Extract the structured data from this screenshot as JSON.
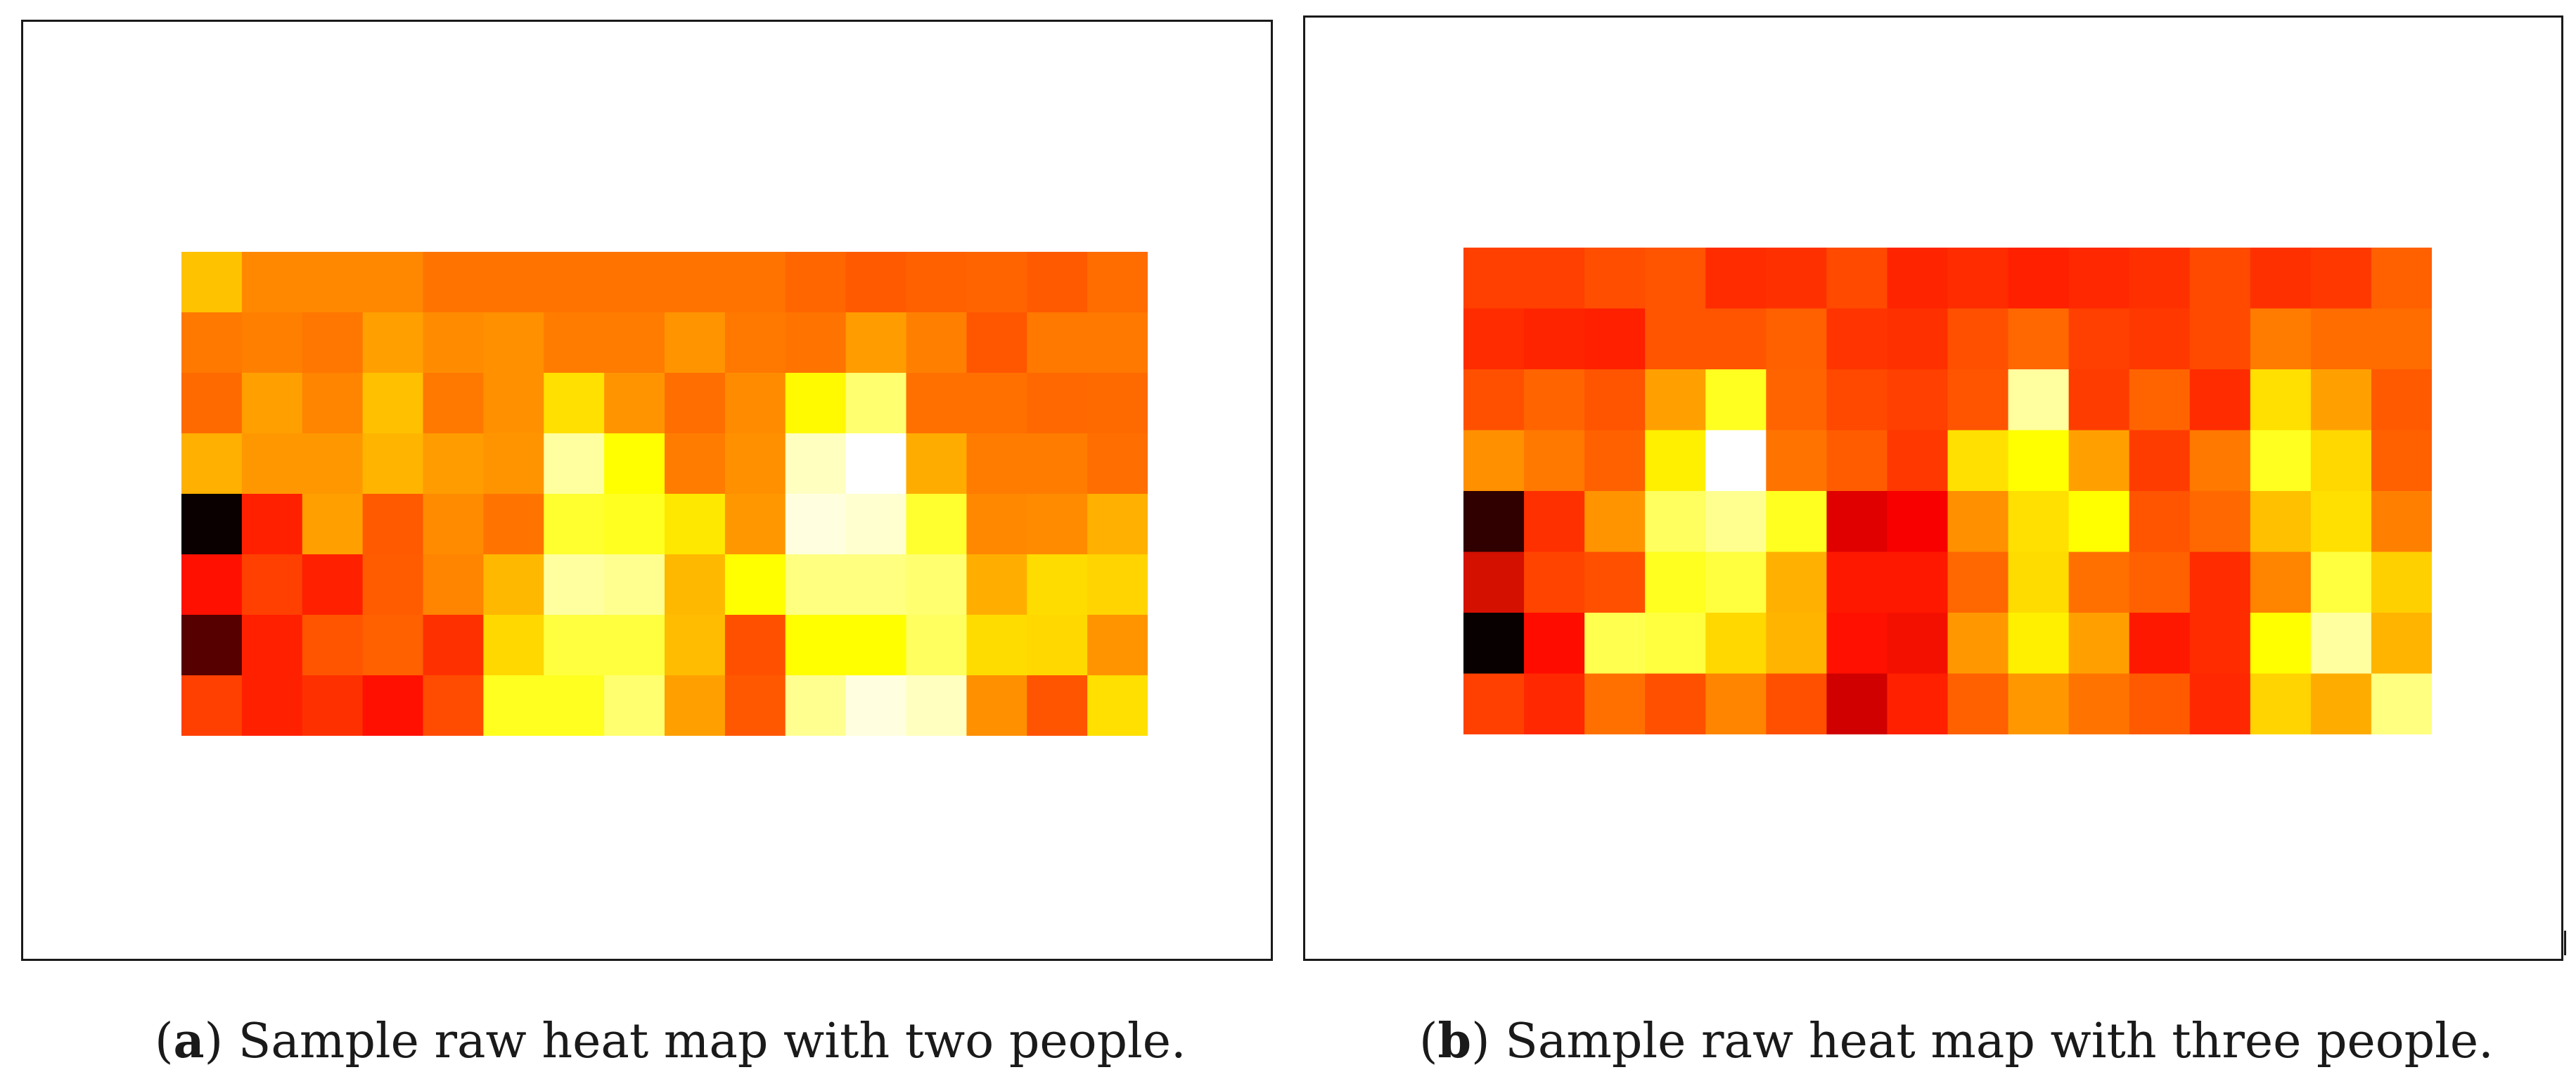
{
  "figure": {
    "subfigures": [
      {
        "letter": "a",
        "caption": "Sample raw heat map with two people."
      },
      {
        "letter": "b",
        "caption": "Sample raw heat map with three people."
      }
    ]
  },
  "chart_data": [
    {
      "type": "heatmap",
      "title": "",
      "xlabel": "",
      "ylabel": "",
      "rows": 8,
      "cols": 16,
      "colormap": "hot",
      "axes_visible": false,
      "colorbar": false,
      "colors": [
        [
          "#ffc200",
          "#ff8800",
          "#ff8800",
          "#ff8800",
          "#ff7400",
          "#ff7400",
          "#ff7400",
          "#ff7400",
          "#ff7400",
          "#ff7400",
          "#ff6600",
          "#ff5a00",
          "#ff6000",
          "#ff6400",
          "#ff5a00",
          "#ff6c00"
        ],
        [
          "#ff7800",
          "#ff8000",
          "#ff7600",
          "#ffa000",
          "#ff8c00",
          "#ff9000",
          "#ff7c00",
          "#ff7c00",
          "#ff9400",
          "#ff7800",
          "#ff7400",
          "#ff9c00",
          "#ff8000",
          "#ff5600",
          "#ff7800",
          "#ff7800"
        ],
        [
          "#ff6a00",
          "#ffa000",
          "#ff8400",
          "#ffc000",
          "#ff7800",
          "#ff9000",
          "#ffe000",
          "#ff9400",
          "#ff6e00",
          "#ff8c00",
          "#fffa00",
          "#ffff70",
          "#ff7000",
          "#ff7000",
          "#ff6800",
          "#ff6a00"
        ],
        [
          "#ffb000",
          "#ff9800",
          "#ff9800",
          "#ffb400",
          "#ff9c00",
          "#ff9400",
          "#ffffa0",
          "#ffff00",
          "#ff7c00",
          "#ff9000",
          "#ffffc0",
          "#ffffff",
          "#ffac00",
          "#ff7c00",
          "#ff7c00",
          "#ff6e00"
        ],
        [
          "#0a0000",
          "#ff2000",
          "#ffa000",
          "#ff5a00",
          "#ff8c00",
          "#ff7400",
          "#ffff30",
          "#ffff20",
          "#ffe800",
          "#ff9800",
          "#ffffe0",
          "#ffffd0",
          "#ffff30",
          "#ff8800",
          "#ff8c00",
          "#ffb000"
        ],
        [
          "#ff1000",
          "#ff4000",
          "#ff2000",
          "#ff5c00",
          "#ff8400",
          "#ffb800",
          "#ffffa0",
          "#ffff90",
          "#ffb800",
          "#ffff00",
          "#ffff80",
          "#ffff80",
          "#ffff70",
          "#ffae00",
          "#ffdc00",
          "#ffd400"
        ],
        [
          "#560000",
          "#ff2000",
          "#ff5400",
          "#ff6000",
          "#ff3000",
          "#ffd800",
          "#ffff40",
          "#ffff40",
          "#ffbc00",
          "#ff5000",
          "#ffff00",
          "#ffff00",
          "#ffff60",
          "#ffdc00",
          "#ffd800",
          "#ff9400"
        ],
        [
          "#ff4000",
          "#ff2000",
          "#ff3000",
          "#ff1000",
          "#ff4c00",
          "#ffff20",
          "#ffff20",
          "#ffff70",
          "#ffa000",
          "#ff5800",
          "#ffff90",
          "#ffffe0",
          "#ffffc0",
          "#ff9000",
          "#ff5400",
          "#ffe000"
        ]
      ]
    },
    {
      "type": "heatmap",
      "title": "",
      "xlabel": "",
      "ylabel": "",
      "rows": 8,
      "cols": 16,
      "colormap": "hot",
      "axes_visible": false,
      "colorbar": false,
      "colors": [
        [
          "#ff4000",
          "#ff4000",
          "#ff4e00",
          "#ff5400",
          "#ff2c00",
          "#ff3000",
          "#ff4a00",
          "#ff2400",
          "#ff2c00",
          "#ff2000",
          "#ff2800",
          "#ff3000",
          "#ff4a00",
          "#ff3000",
          "#ff3800",
          "#ff6000"
        ],
        [
          "#ff2c00",
          "#ff2400",
          "#ff2000",
          "#ff5400",
          "#ff5400",
          "#ff6000",
          "#ff3400",
          "#ff3000",
          "#ff5000",
          "#ff6800",
          "#ff4000",
          "#ff3800",
          "#ff4a00",
          "#ff7c00",
          "#ff6c00",
          "#ff6c00"
        ],
        [
          "#ff5000",
          "#ff6400",
          "#ff5400",
          "#ffa000",
          "#ffff20",
          "#ff6400",
          "#ff4800",
          "#ff4000",
          "#ff5400",
          "#ffffa0",
          "#ff3c00",
          "#ff6400",
          "#ff2c00",
          "#ffe000",
          "#ffa000",
          "#ff5a00"
        ],
        [
          "#ff9000",
          "#ff7800",
          "#ff6000",
          "#fff000",
          "#ffffff",
          "#ff7400",
          "#ff5c00",
          "#ff3800",
          "#ffe000",
          "#ffff00",
          "#ffa000",
          "#ff3c00",
          "#ff7800",
          "#ffff20",
          "#ffd800",
          "#ff6000"
        ],
        [
          "#300000",
          "#ff3000",
          "#ff9400",
          "#ffff60",
          "#ffff90",
          "#ffff20",
          "#e00000",
          "#f80000",
          "#ff9000",
          "#ffe000",
          "#ffff00",
          "#ff5400",
          "#ff6800",
          "#ffc000",
          "#ffe000",
          "#ff8000"
        ],
        [
          "#d41000",
          "#ff4400",
          "#ff5000",
          "#ffff20",
          "#ffff40",
          "#ffb000",
          "#ff1800",
          "#ff1800",
          "#ff6800",
          "#ffdc00",
          "#ff7000",
          "#ff6000",
          "#ff2c00",
          "#ff8400",
          "#ffff40",
          "#ffd000"
        ],
        [
          "#080000",
          "#ff0c00",
          "#ffff50",
          "#ffff40",
          "#ffd800",
          "#ffb400",
          "#ff1000",
          "#f41000",
          "#ff9800",
          "#fff000",
          "#ffa000",
          "#ff1800",
          "#ff2c00",
          "#ffff00",
          "#ffffa0",
          "#ffb400"
        ],
        [
          "#ff4000",
          "#ff2800",
          "#ff7000",
          "#ff5000",
          "#ff8400",
          "#ff5000",
          "#d00000",
          "#ff2000",
          "#ff6000",
          "#ff9800",
          "#ff7400",
          "#ff5a00",
          "#ff2800",
          "#ffd400",
          "#ffac00",
          "#ffff80"
        ]
      ]
    }
  ]
}
